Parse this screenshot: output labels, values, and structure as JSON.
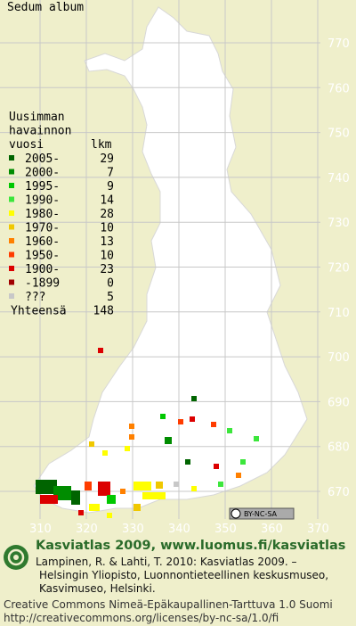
{
  "header": {
    "title": "Sedum album"
  },
  "legend": {
    "heading": [
      "Uusimman",
      "havainnon",
      "vuosi"
    ],
    "count_heading": "lkm",
    "rows": [
      {
        "label": "2005-",
        "count": 29,
        "color": "#006400"
      },
      {
        "label": "2000-",
        "count": 7,
        "color": "#008c00"
      },
      {
        "label": "1995-",
        "count": 9,
        "color": "#00c800"
      },
      {
        "label": "1990-",
        "count": 14,
        "color": "#3ce63c"
      },
      {
        "label": "1980-",
        "count": 28,
        "color": "#ffff00"
      },
      {
        "label": "1970-",
        "count": 10,
        "color": "#f0c800"
      },
      {
        "label": "1960-",
        "count": 13,
        "color": "#ff8000"
      },
      {
        "label": "1950-",
        "count": 10,
        "color": "#ff3c00"
      },
      {
        "label": "1900-",
        "count": 23,
        "color": "#dc0000"
      },
      {
        "label": "-1899",
        "count": 0,
        "color": "#a00000"
      },
      {
        "label": "???",
        "count": 5,
        "color": "#c8c8c8"
      }
    ],
    "total_label": "Yhteensä",
    "total": 148
  },
  "grid": {
    "north": [
      770,
      760,
      750,
      740,
      730,
      720,
      710,
      700,
      690,
      680,
      670
    ],
    "east": [
      310,
      320,
      330,
      340,
      350,
      360,
      370
    ]
  },
  "badge": "BY-NC-SA",
  "footer": {
    "heading": "Kasviatlas 2009, www.luomus.fi/kasviatlas",
    "citation": [
      "Lampinen, R. & Lahti, T. 2010: Kasviatlas 2009. –",
      "Helsingin Yliopisto, Luonnontieteellinen keskusmuseo,",
      "Kasvimuseo, Helsinki."
    ],
    "license": [
      "Creative Commons Nimeä-Epäkaupallinen-Tarttuva 1.0 Suomi",
      "http://creativecommons.org/licenses/by-nc-sa/1.0/fi"
    ]
  }
}
